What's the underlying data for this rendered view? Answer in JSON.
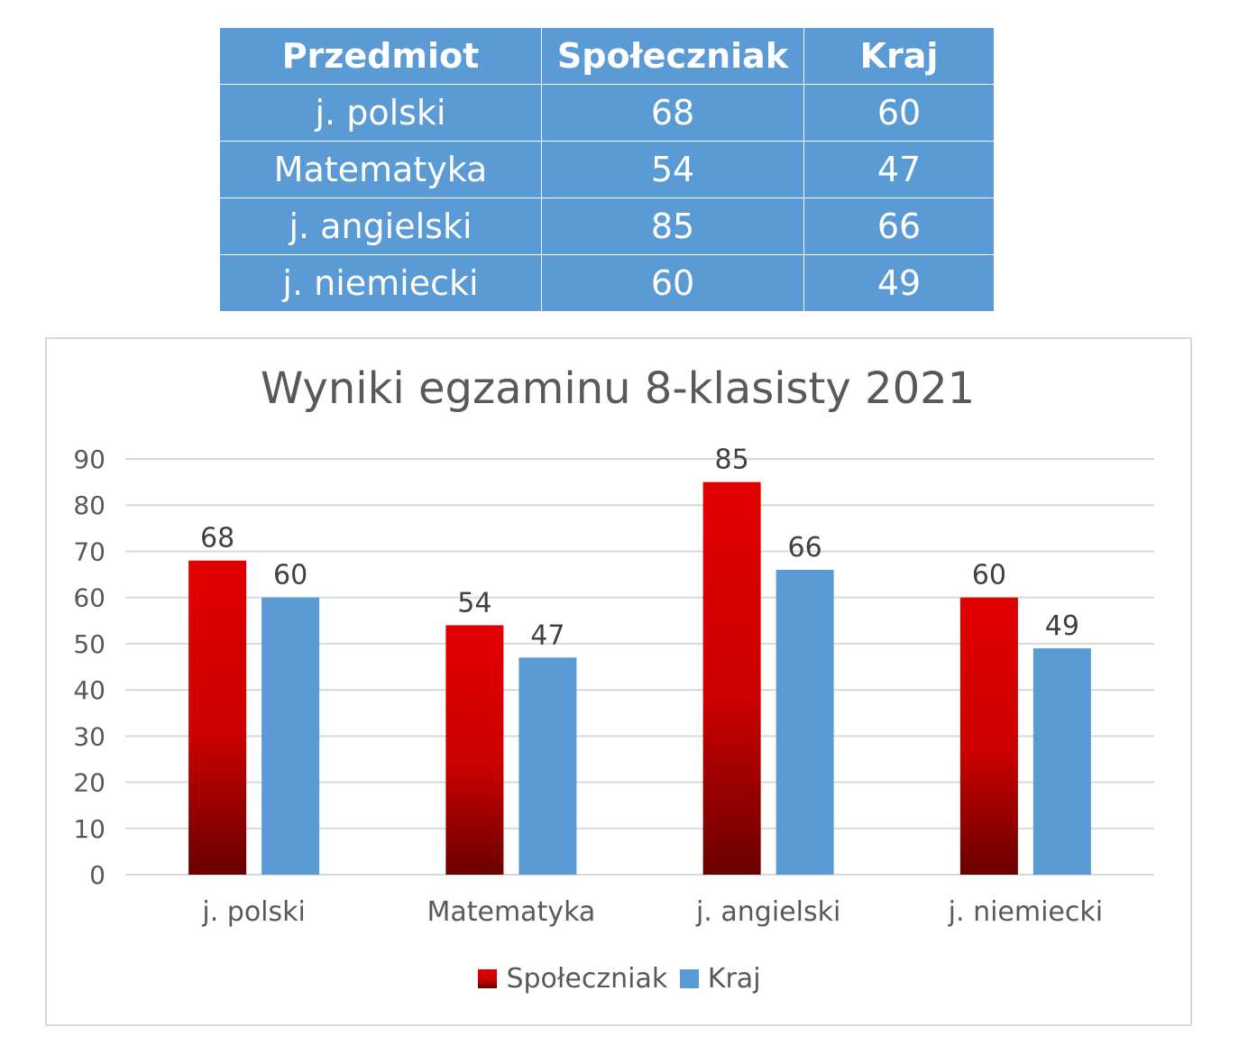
{
  "table": {
    "headers": [
      "Przedmiot",
      "Społeczniak",
      "Kraj"
    ],
    "rows": [
      [
        "j. polski",
        "68",
        "60"
      ],
      [
        "Matematyka",
        "54",
        "47"
      ],
      [
        "j. angielski",
        "85",
        "66"
      ],
      [
        "j. niemiecki",
        "60",
        "49"
      ]
    ]
  },
  "chart_data": {
    "type": "bar",
    "title": "Wyniki egzaminu 8-klasisty 2021",
    "xlabel": "",
    "ylabel": "",
    "categories": [
      "j. polski",
      "Matematyka",
      "j. angielski",
      "j. niemiecki"
    ],
    "series": [
      {
        "name": "Społeczniak",
        "values": [
          68,
          54,
          85,
          60
        ],
        "color": "#e20000"
      },
      {
        "name": "Kraj",
        "values": [
          60,
          47,
          66,
          49
        ],
        "color": "#5b9bd5"
      }
    ],
    "ylim": [
      0,
      90
    ],
    "yticks": [
      0,
      10,
      20,
      30,
      40,
      50,
      60,
      70,
      80,
      90
    ],
    "grid": true,
    "data_labels": true,
    "legend_position": "bottom"
  },
  "colors": {
    "table_bg": "#5b9bd5",
    "series_red_top": "#e20000",
    "series_red_bottom": "#6a0000",
    "series_blue": "#5b9bd5",
    "gridline": "#d9d9d9",
    "text": "#595959"
  }
}
